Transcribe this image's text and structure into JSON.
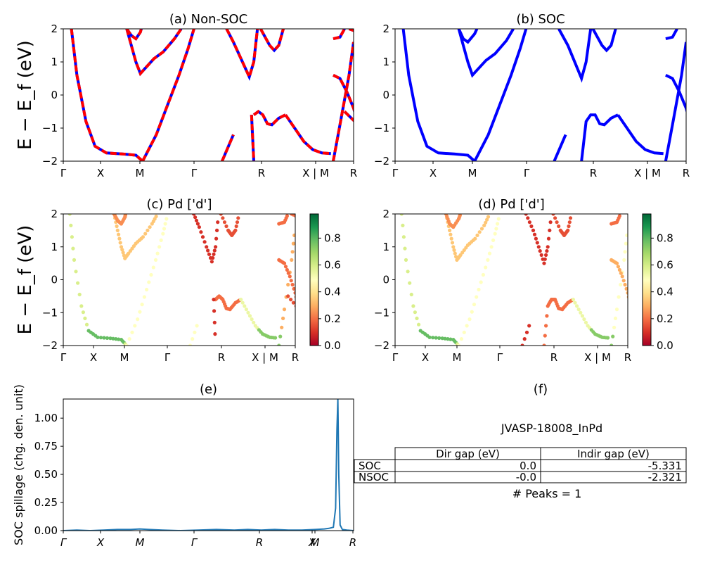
{
  "figure": {
    "id_label": "JVASP-18008_InPd"
  },
  "kpath": [
    "Γ",
    "X",
    "M",
    "Γ",
    "R",
    "X | M",
    "R"
  ],
  "kpath_italic": [
    "Γ",
    "X",
    "M",
    "Γ",
    "R",
    "X",
    "M",
    "R"
  ],
  "colorbar": {
    "ticks": [
      "0.0",
      "0.2",
      "0.4",
      "0.6",
      "0.8"
    ],
    "range": [
      0,
      0.98
    ]
  },
  "chart_data": [
    {
      "id": "a",
      "type": "line",
      "title": "(a) Non-SOC",
      "ylabel": "E − E_f (eV)",
      "ylim": [
        -2,
        2
      ],
      "xlim": [
        0,
        6.4
      ],
      "yticks": [
        "2",
        "1",
        "0",
        "−1",
        "−2"
      ],
      "series": [
        {
          "style": "dashed-red-blue",
          "segments": [
            [
              [
                0.18,
                2
              ],
              [
                0.3,
                0.6
              ],
              [
                0.5,
                -0.8
              ],
              [
                0.7,
                -1.55
              ],
              [
                0.95,
                -1.75
              ],
              [
                1.3,
                -1.78
              ],
              [
                1.6,
                -1.82
              ],
              [
                1.75,
                -2
              ]
            ],
            [
              [
                1.75,
                -2
              ],
              [
                2.05,
                -1.2
              ],
              [
                2.3,
                -0.3
              ],
              [
                2.55,
                0.6
              ],
              [
                2.75,
                1.4
              ],
              [
                2.88,
                2
              ]
            ],
            [
              [
                1.4,
                2
              ],
              [
                1.5,
                1.5
              ],
              [
                1.6,
                1.0
              ],
              [
                1.7,
                0.65
              ],
              [
                1.8,
                0.8
              ],
              [
                2.0,
                1.1
              ],
              [
                2.2,
                1.3
              ],
              [
                2.45,
                1.7
              ],
              [
                2.6,
                2
              ]
            ],
            [
              [
                1.4,
                2
              ],
              [
                1.5,
                1.8
              ],
              [
                1.6,
                1.7
              ],
              [
                1.7,
                1.9
              ],
              [
                1.72,
                2
              ]
            ],
            [
              [
                3.6,
                2
              ],
              [
                3.75,
                1.6
              ],
              [
                3.95,
                1.0
              ],
              [
                4.1,
                0.55
              ],
              [
                4.2,
                1.0
              ],
              [
                4.28,
                2
              ]
            ],
            [
              [
                4.2,
                -0.6
              ],
              [
                4.3,
                -0.5
              ],
              [
                4.4,
                -0.6
              ],
              [
                4.5,
                -0.87
              ],
              [
                4.6,
                -0.9
              ],
              [
                4.75,
                -0.7
              ],
              [
                4.9,
                -0.6
              ]
            ],
            [
              [
                4.9,
                -0.6
              ],
              [
                5.1,
                -1.0
              ],
              [
                5.3,
                -1.4
              ],
              [
                5.5,
                -1.65
              ],
              [
                5.7,
                -1.75
              ],
              [
                5.9,
                -1.77
              ]
            ],
            [
              [
                4.15,
                -0.6
              ],
              [
                4.2,
                -2
              ]
            ],
            [
              [
                4.35,
                2
              ],
              [
                4.55,
                1.5
              ],
              [
                4.65,
                1.35
              ],
              [
                4.75,
                1.5
              ],
              [
                4.85,
                2
              ]
            ],
            [
              [
                3.5,
                -2
              ],
              [
                3.75,
                -1.2
              ]
            ],
            [
              [
                5.95,
                -2
              ],
              [
                6.1,
                -0.9
              ],
              [
                6.3,
                0.6
              ],
              [
                6.4,
                1.6
              ]
            ],
            [
              [
                5.95,
                0.6
              ],
              [
                6.1,
                0.5
              ],
              [
                6.25,
                0.1
              ],
              [
                6.4,
                -0.4
              ],
              [
                6.5,
                -0.9
              ]
            ],
            [
              [
                5.95,
                1.7
              ],
              [
                6.1,
                1.75
              ],
              [
                6.2,
                2
              ]
            ],
            [
              [
                6.2,
                -0.5
              ],
              [
                6.5,
                -0.9
              ]
            ],
            [
              [
                6.3,
                2
              ],
              [
                6.5,
                1.9
              ]
            ]
          ]
        }
      ]
    },
    {
      "id": "b",
      "type": "line",
      "title": "(b) SOC",
      "ylim": [
        -2,
        2
      ],
      "xlim": [
        0,
        6.4
      ],
      "yticks": [
        "2",
        "1",
        "0",
        "−1",
        "−2"
      ],
      "series": [
        {
          "style": "solid-blue",
          "segments": [
            [
              [
                0.18,
                2
              ],
              [
                0.3,
                0.6
              ],
              [
                0.5,
                -0.8
              ],
              [
                0.7,
                -1.55
              ],
              [
                0.95,
                -1.75
              ],
              [
                1.3,
                -1.78
              ],
              [
                1.6,
                -1.82
              ],
              [
                1.75,
                -2
              ]
            ],
            [
              [
                1.75,
                -2
              ],
              [
                2.05,
                -1.2
              ],
              [
                2.3,
                -0.3
              ],
              [
                2.55,
                0.6
              ],
              [
                2.75,
                1.4
              ],
              [
                2.88,
                2
              ]
            ],
            [
              [
                1.4,
                2
              ],
              [
                1.5,
                1.5
              ],
              [
                1.6,
                1.0
              ],
              [
                1.7,
                0.6
              ],
              [
                1.8,
                0.75
              ],
              [
                2.0,
                1.05
              ],
              [
                2.2,
                1.25
              ],
              [
                2.45,
                1.65
              ],
              [
                2.6,
                2
              ]
            ],
            [
              [
                1.4,
                2
              ],
              [
                1.5,
                1.7
              ],
              [
                1.6,
                1.6
              ],
              [
                1.75,
                1.85
              ],
              [
                1.8,
                2
              ]
            ],
            [
              [
                3.6,
                2
              ],
              [
                3.8,
                1.5
              ],
              [
                3.95,
                1.0
              ],
              [
                4.1,
                0.5
              ],
              [
                4.2,
                1.0
              ],
              [
                4.3,
                2
              ]
            ],
            [
              [
                4.1,
                -2
              ],
              [
                4.2,
                -0.8
              ],
              [
                4.3,
                -0.6
              ],
              [
                4.4,
                -0.6
              ],
              [
                4.5,
                -0.87
              ],
              [
                4.6,
                -0.9
              ],
              [
                4.75,
                -0.7
              ],
              [
                4.9,
                -0.6
              ]
            ],
            [
              [
                4.9,
                -0.6
              ],
              [
                5.1,
                -1.0
              ],
              [
                5.3,
                -1.4
              ],
              [
                5.5,
                -1.65
              ],
              [
                5.7,
                -1.75
              ],
              [
                5.9,
                -1.77
              ]
            ],
            [
              [
                3.5,
                -2
              ],
              [
                3.75,
                -1.2
              ]
            ],
            [
              [
                4.35,
                2
              ],
              [
                4.55,
                1.5
              ],
              [
                4.65,
                1.35
              ],
              [
                4.75,
                1.5
              ],
              [
                4.85,
                2
              ]
            ],
            [
              [
                5.95,
                -2
              ],
              [
                6.1,
                -0.9
              ],
              [
                6.3,
                0.6
              ],
              [
                6.4,
                1.6
              ]
            ],
            [
              [
                5.95,
                0.6
              ],
              [
                6.1,
                0.5
              ],
              [
                6.25,
                0.1
              ],
              [
                6.4,
                -0.4
              ],
              [
                6.5,
                -0.9
              ]
            ],
            [
              [
                5.95,
                1.7
              ],
              [
                6.1,
                1.75
              ],
              [
                6.2,
                2
              ]
            ]
          ]
        }
      ]
    },
    {
      "id": "c",
      "type": "scatter",
      "title": "(c)  Pd ['d']",
      "ylabel": "E − E_f (eV)",
      "ylim": [
        -2,
        2
      ],
      "xlim": [
        0,
        6.4
      ],
      "yticks": [
        "2",
        "1",
        "0",
        "−1",
        "−2"
      ]
    },
    {
      "id": "d",
      "type": "scatter",
      "title": "(d) Pd ['d']",
      "ylim": [
        -2,
        2
      ],
      "xlim": [
        0,
        6.4
      ],
      "yticks": [
        "2",
        "1",
        "0",
        "−1",
        "−2"
      ]
    },
    {
      "id": "e",
      "type": "line",
      "title": "(e)",
      "ylabel": "SOC spillage (chg. den. unit)",
      "ylim": [
        0,
        1.17
      ],
      "yticks": [
        "0.00",
        "0.25",
        "0.50",
        "0.75",
        "1.00"
      ],
      "x": [
        0,
        0.3,
        0.6,
        0.9,
        1.2,
        1.5,
        1.7,
        1.9,
        2.2,
        2.6,
        3.0,
        3.4,
        3.8,
        4.1,
        4.4,
        4.7,
        5.0,
        5.3,
        5.6,
        5.8,
        5.9,
        6.0,
        6.05,
        6.08,
        6.1,
        6.12,
        6.15,
        6.2,
        6.3,
        6.45
      ],
      "values": [
        0.0,
        0.005,
        0.0,
        0.005,
        0.01,
        0.01,
        0.015,
        0.01,
        0.005,
        0.0,
        0.005,
        0.01,
        0.005,
        0.01,
        0.005,
        0.01,
        0.005,
        0.005,
        0.01,
        0.015,
        0.02,
        0.03,
        0.2,
        0.9,
        1.17,
        0.5,
        0.05,
        0.01,
        0.005,
        0.0
      ]
    },
    {
      "id": "f",
      "type": "table",
      "title": "(f)",
      "columns": [
        "",
        "Dir gap (eV)",
        "Indir gap (eV)"
      ],
      "rows": [
        [
          "SOC",
          "0.0",
          "-5.331"
        ],
        [
          "NSOC",
          "-0.0",
          "-2.321"
        ]
      ],
      "footer": "# Peaks = 1"
    }
  ]
}
